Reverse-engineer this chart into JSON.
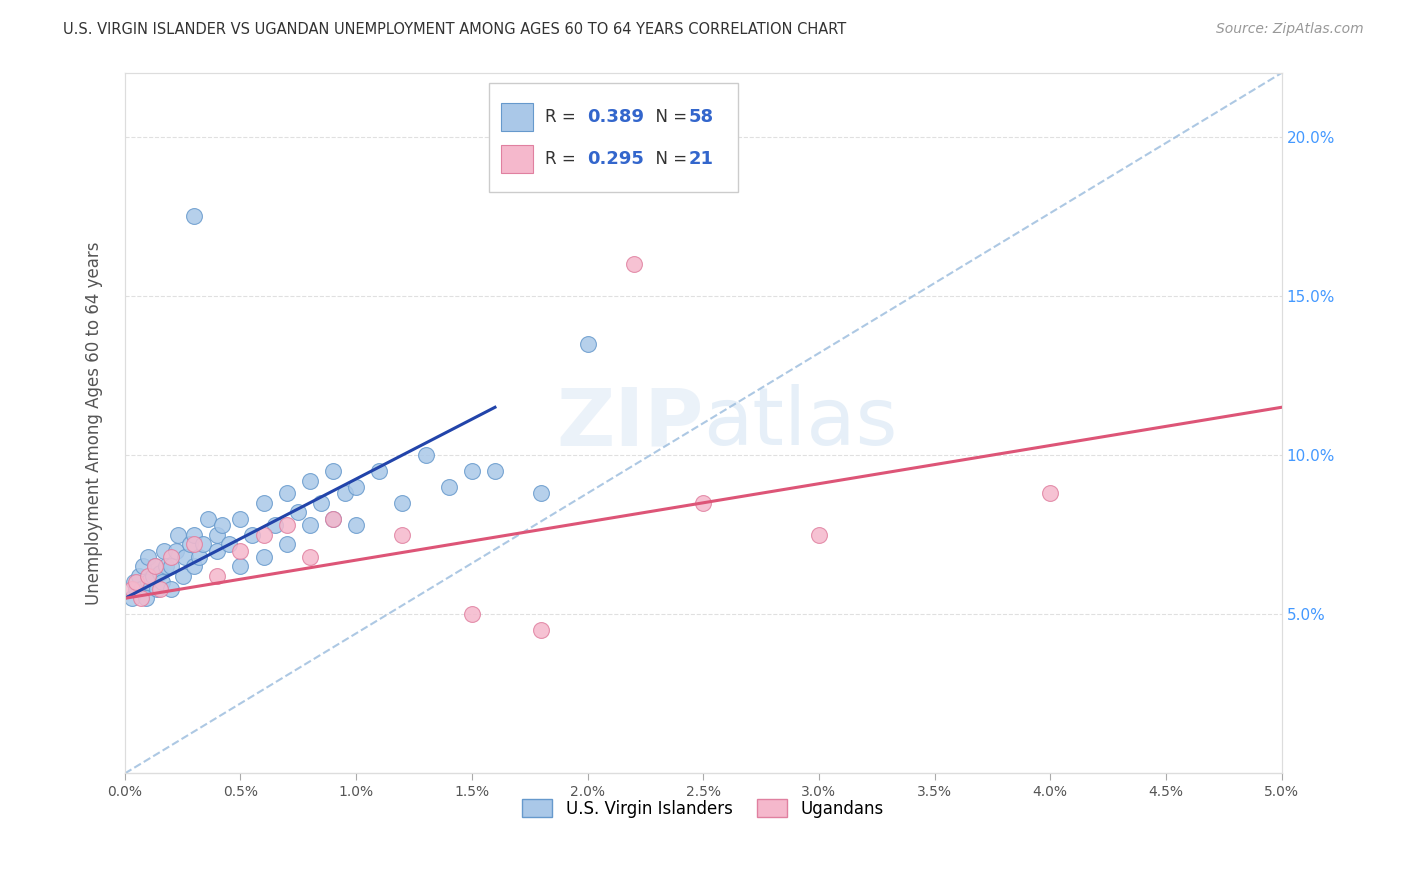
{
  "title": "U.S. VIRGIN ISLANDER VS UGANDAN UNEMPLOYMENT AMONG AGES 60 TO 64 YEARS CORRELATION CHART",
  "source": "Source: ZipAtlas.com",
  "ylabel": "Unemployment Among Ages 60 to 64 years",
  "xlim": [
    0,
    0.05
  ],
  "ylim": [
    0,
    0.22
  ],
  "yticks_right": [
    0.05,
    0.1,
    0.15,
    0.2
  ],
  "ytick_labels_right": [
    "5.0%",
    "10.0%",
    "15.0%",
    "20.0%"
  ],
  "xticks": [
    0.0,
    0.005,
    0.01,
    0.015,
    0.02,
    0.025,
    0.03,
    0.035,
    0.04,
    0.045,
    0.05
  ],
  "xtick_labels": [
    "0.0%",
    "0.5%",
    "1.0%",
    "1.5%",
    "2.0%",
    "2.5%",
    "3.0%",
    "3.5%",
    "4.0%",
    "4.5%",
    "5.0%"
  ],
  "blue_color": "#aac8e8",
  "blue_edge_color": "#6699cc",
  "pink_color": "#f5b8cc",
  "pink_edge_color": "#e080a0",
  "blue_line_color": "#2244aa",
  "pink_line_color": "#dd5577",
  "dashed_line_color": "#99bbdd",
  "R_blue": 0.389,
  "N_blue": 58,
  "R_pink": 0.295,
  "N_pink": 21,
  "legend_label_blue": "U.S. Virgin Islanders",
  "legend_label_pink": "Ugandans",
  "watermark_text": "ZIPatlas",
  "background_color": "#ffffff",
  "grid_color": "#cccccc",
  "blue_scatter_x": [
    0.0003,
    0.0004,
    0.0005,
    0.0006,
    0.0007,
    0.0008,
    0.0009,
    0.001,
    0.001,
    0.0012,
    0.0013,
    0.0014,
    0.0015,
    0.0016,
    0.0017,
    0.0018,
    0.002,
    0.002,
    0.0022,
    0.0023,
    0.0025,
    0.0026,
    0.0028,
    0.003,
    0.003,
    0.0032,
    0.0034,
    0.0036,
    0.004,
    0.004,
    0.0042,
    0.0045,
    0.005,
    0.005,
    0.0055,
    0.006,
    0.006,
    0.0065,
    0.007,
    0.007,
    0.0075,
    0.008,
    0.008,
    0.0085,
    0.009,
    0.009,
    0.0095,
    0.01,
    0.01,
    0.011,
    0.012,
    0.013,
    0.014,
    0.015,
    0.016,
    0.018,
    0.02,
    0.003
  ],
  "blue_scatter_y": [
    0.055,
    0.06,
    0.058,
    0.062,
    0.058,
    0.065,
    0.055,
    0.06,
    0.068,
    0.062,
    0.065,
    0.058,
    0.063,
    0.06,
    0.07,
    0.065,
    0.058,
    0.065,
    0.07,
    0.075,
    0.062,
    0.068,
    0.072,
    0.065,
    0.075,
    0.068,
    0.072,
    0.08,
    0.07,
    0.075,
    0.078,
    0.072,
    0.065,
    0.08,
    0.075,
    0.068,
    0.085,
    0.078,
    0.072,
    0.088,
    0.082,
    0.078,
    0.092,
    0.085,
    0.08,
    0.095,
    0.088,
    0.078,
    0.09,
    0.095,
    0.085,
    0.1,
    0.09,
    0.095,
    0.095,
    0.088,
    0.135,
    0.175
  ],
  "pink_scatter_x": [
    0.0003,
    0.0005,
    0.0007,
    0.001,
    0.0013,
    0.0015,
    0.002,
    0.003,
    0.004,
    0.005,
    0.006,
    0.007,
    0.008,
    0.009,
    0.012,
    0.015,
    0.018,
    0.025,
    0.03,
    0.04,
    0.022
  ],
  "pink_scatter_y": [
    0.058,
    0.06,
    0.055,
    0.062,
    0.065,
    0.058,
    0.068,
    0.072,
    0.062,
    0.07,
    0.075,
    0.078,
    0.068,
    0.08,
    0.075,
    0.05,
    0.045,
    0.085,
    0.075,
    0.088,
    0.16
  ],
  "blue_regline_x0": 0.0,
  "blue_regline_y0": 0.055,
  "blue_regline_x1": 0.016,
  "blue_regline_y1": 0.115,
  "pink_regline_x0": 0.0,
  "pink_regline_y0": 0.055,
  "pink_regline_x1": 0.05,
  "pink_regline_y1": 0.115
}
